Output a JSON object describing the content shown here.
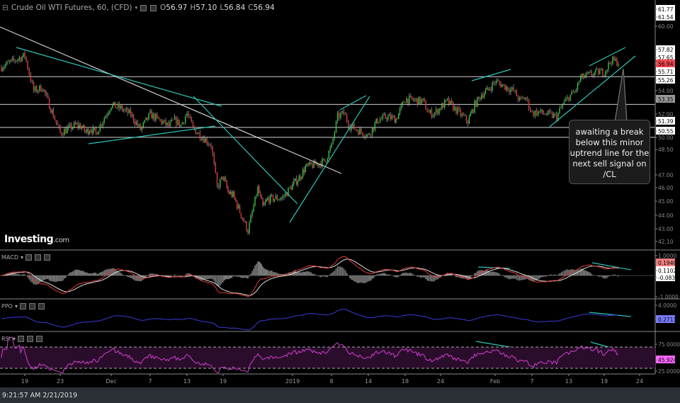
{
  "header": {
    "title": "Crude Oil WTI Futures, 60, (CFD)",
    "open_label": "O",
    "open": "56.97",
    "high_label": "H",
    "high": "57.10",
    "low_label": "L",
    "low": "56.84",
    "close_label": "C",
    "close": "56.94"
  },
  "colors": {
    "up": "#2ecc40",
    "down": "#e0393e",
    "trendline": "#2ec4b6",
    "resistance": "#cfcfcf",
    "macd": "#e03a3a",
    "signal": "#dddddd",
    "ppo": "#3b3bd6",
    "rsi": "#d040d0",
    "rsi_band": "#2a0d2a",
    "last_price": "#f0474f"
  },
  "price_axis": {
    "ticks": [
      "61.77",
      "61.54",
      "60.00",
      "57.82",
      "57.65",
      "55.71",
      "55.26",
      "54.00",
      "52.00",
      "51.39",
      "50.55",
      "50.00",
      "48.50",
      "47.00",
      "46.00",
      "45.00",
      "44.00",
      "43.00",
      "42.10"
    ],
    "last_price": "56.94",
    "highlight": "53.35"
  },
  "levels": [
    55.71,
    53.35,
    51.39,
    50.55
  ],
  "annotation": "awaiting a break below this minor uptrend line for the next sell signal on /CL",
  "logo": {
    "brand": "Investing",
    "suffix": ".com"
  },
  "indicators": {
    "macd": {
      "label": "MACD",
      "ticks": [
        "1.0000",
        "-1.0000"
      ],
      "values": [
        "0.1940",
        "0.1102",
        "-0.0838"
      ]
    },
    "ppo": {
      "label": "PPO",
      "ticks": [
        "4.0000"
      ],
      "value": "0.2711"
    },
    "rsi": {
      "label": "RSI",
      "ticks": [
        "75.0000",
        "25.0000"
      ],
      "value": "45.9243"
    }
  },
  "date_axis": [
    {
      "label": "19",
      "date": "2018-11-19"
    },
    {
      "label": "23",
      "date": "2018-11-23"
    },
    {
      "label": "Dec",
      "date": "2018-12-03"
    },
    {
      "label": "7",
      "date": "2018-12-07"
    },
    {
      "label": "13",
      "date": "2018-12-13"
    },
    {
      "label": "19",
      "date": "2018-12-19"
    },
    {
      "label": "2019",
      "date": "2019-01-02"
    },
    {
      "label": "8",
      "date": "2019-01-08"
    },
    {
      "label": "14",
      "date": "2019-01-14"
    },
    {
      "label": "18",
      "date": "2019-01-18"
    },
    {
      "label": "24",
      "date": "2019-01-24"
    },
    {
      "label": "Feb",
      "date": "2019-02-01"
    },
    {
      "label": "7",
      "date": "2019-02-07"
    },
    {
      "label": "13",
      "date": "2019-02-13"
    },
    {
      "label": "19",
      "date": "2019-02-19"
    },
    {
      "label": "24",
      "date": "2019-02-24"
    }
  ],
  "status": {
    "timestamp": "9:21:57 AM 2/21/2019"
  },
  "chart_data": {
    "type": "candlestick",
    "title": "Crude Oil WTI Futures, 60, (CFD)",
    "ylim": [
      42.1,
      61.77
    ],
    "series": [
      [
        "2018-11-16",
        56.5
      ],
      [
        "2018-11-19",
        57.5
      ],
      [
        "2018-11-20",
        54.5
      ],
      [
        "2018-11-21",
        54.8
      ],
      [
        "2018-11-23",
        50.9
      ],
      [
        "2018-11-26",
        51.6
      ],
      [
        "2018-11-27",
        51.5
      ],
      [
        "2018-11-28",
        51.0
      ],
      [
        "2018-11-29",
        51.3
      ],
      [
        "2018-11-30",
        50.9
      ],
      [
        "2018-12-03",
        53.3
      ],
      [
        "2018-12-04",
        53.0
      ],
      [
        "2018-12-05",
        52.5
      ],
      [
        "2018-12-06",
        51.2
      ],
      [
        "2018-12-07",
        52.5
      ],
      [
        "2018-12-10",
        51.5
      ],
      [
        "2018-12-11",
        52.0
      ],
      [
        "2018-12-12",
        51.6
      ],
      [
        "2018-12-13",
        52.6
      ],
      [
        "2018-12-14",
        51.3
      ],
      [
        "2018-12-17",
        49.9
      ],
      [
        "2018-12-18",
        46.3
      ],
      [
        "2018-12-19",
        47.2
      ],
      [
        "2018-12-20",
        45.9
      ],
      [
        "2018-12-21",
        45.6
      ],
      [
        "2018-12-24",
        42.6
      ],
      [
        "2018-12-26",
        46.2
      ],
      [
        "2018-12-27",
        44.6
      ],
      [
        "2018-12-28",
        45.3
      ],
      [
        "2018-12-31",
        45.4
      ],
      [
        "2019-01-02",
        46.5
      ],
      [
        "2019-01-03",
        47.1
      ],
      [
        "2019-01-04",
        48.0
      ],
      [
        "2019-01-07",
        48.5
      ],
      [
        "2019-01-08",
        49.8
      ],
      [
        "2019-01-09",
        52.3
      ],
      [
        "2019-01-10",
        52.6
      ],
      [
        "2019-01-11",
        51.5
      ],
      [
        "2019-01-14",
        50.7
      ],
      [
        "2019-01-15",
        52.0
      ],
      [
        "2019-01-16",
        52.3
      ],
      [
        "2019-01-17",
        52.1
      ],
      [
        "2019-01-18",
        53.8
      ],
      [
        "2019-01-21",
        53.6
      ],
      [
        "2019-01-22",
        52.6
      ],
      [
        "2019-01-23",
        52.6
      ],
      [
        "2019-01-24",
        53.1
      ],
      [
        "2019-01-25",
        53.6
      ],
      [
        "2019-01-28",
        51.9
      ],
      [
        "2019-01-29",
        53.3
      ],
      [
        "2019-01-30",
        54.2
      ],
      [
        "2019-01-31",
        54.6
      ],
      [
        "2019-02-01",
        55.3
      ],
      [
        "2019-02-04",
        54.5
      ],
      [
        "2019-02-05",
        53.7
      ],
      [
        "2019-02-06",
        53.9
      ],
      [
        "2019-02-07",
        52.6
      ],
      [
        "2019-02-08",
        52.7
      ],
      [
        "2019-02-11",
        52.3
      ],
      [
        "2019-02-12",
        53.3
      ],
      [
        "2019-02-13",
        54.0
      ],
      [
        "2019-02-14",
        54.4
      ],
      [
        "2019-02-15",
        55.6
      ],
      [
        "2019-02-18",
        56.1
      ],
      [
        "2019-02-19",
        56.1
      ],
      [
        "2019-02-20",
        57.1
      ],
      [
        "2019-02-21",
        56.94
      ]
    ]
  }
}
